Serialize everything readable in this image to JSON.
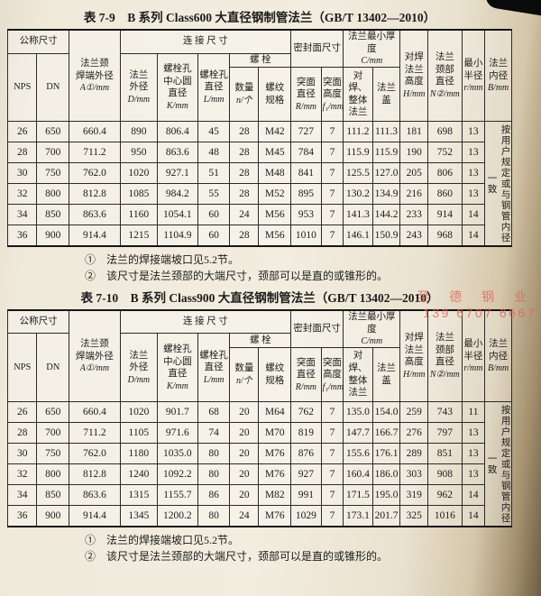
{
  "columns": {
    "nominal_size": "公称尺寸",
    "nps": "NPS",
    "dn": "DN",
    "neck_od_label": "法兰颈\n焊端外径",
    "neck_od_sym": "A①/mm",
    "connect": "连 接 尺 寸",
    "flange_od_label": "法兰\n外径",
    "flange_od_sym": "D/mm",
    "bolt_circle_label": "螺栓孔\n中心圆\n直径",
    "bolt_circle_sym": "K/mm",
    "bolt_hole_label": "螺栓孔\n直径",
    "bolt_hole_sym": "L/mm",
    "bolt": "螺        栓",
    "bolt_qty_label": "数量",
    "bolt_qty_sym": "n/个",
    "thread_label": "螺纹\n规格",
    "seal_face": "密封面尺寸",
    "raised_dia_label": "突面\n直径",
    "raised_dia_sym": "R/mm",
    "raised_h_label": "突面\n高度",
    "raised_h_sym": "f₁/mm",
    "min_thick_label": "法兰最小厚度",
    "min_thick_sym": "C/mm",
    "weld_integral": "对焊、\n整体\n法兰",
    "blind": "法兰\n盖",
    "height_label": "对焊\n法兰\n高度",
    "height_sym": "H/mm",
    "neck_dia_label": "法兰\n颈部\n直径",
    "neck_dia_sym": "N②/mm",
    "min_radius_label": "最小\n半径",
    "min_radius_sym": "r/mm",
    "bore_label": "法兰\n内径",
    "bore_sym": "B/mm"
  },
  "tables": [
    {
      "title": "表 7-9　B 系列 Class600 大直径钢制管法兰（GB/T 13402—2010）",
      "side_note": "按用户规定或与钢管内径一致",
      "rows": [
        [
          "26",
          "650",
          "660.4",
          "890",
          "806.4",
          "45",
          "28",
          "M42",
          "727",
          "7",
          "111.2",
          "111.3",
          "181",
          "698",
          "13"
        ],
        [
          "28",
          "700",
          "711.2",
          "950",
          "863.6",
          "48",
          "28",
          "M45",
          "784",
          "7",
          "115.9",
          "115.9",
          "190",
          "752",
          "13"
        ],
        [
          "30",
          "750",
          "762.0",
          "1020",
          "927.1",
          "51",
          "28",
          "M48",
          "841",
          "7",
          "125.5",
          "127.0",
          "205",
          "806",
          "13"
        ],
        [
          "32",
          "800",
          "812.8",
          "1085",
          "984.2",
          "55",
          "28",
          "M52",
          "895",
          "7",
          "130.2",
          "134.9",
          "216",
          "860",
          "13"
        ],
        [
          "34",
          "850",
          "863.6",
          "1160",
          "1054.1",
          "60",
          "24",
          "M56",
          "953",
          "7",
          "141.3",
          "144.2",
          "233",
          "914",
          "14"
        ],
        [
          "36",
          "900",
          "914.4",
          "1215",
          "1104.9",
          "60",
          "28",
          "M56",
          "1010",
          "7",
          "146.1",
          "150.9",
          "243",
          "968",
          "14"
        ]
      ]
    },
    {
      "title": "表 7-10　B 系列 Class900 大直径钢制管法兰（GB/T 13402—2010）",
      "side_note": "按用户规定或与钢管内径一致",
      "rows": [
        [
          "26",
          "650",
          "660.4",
          "1020",
          "901.7",
          "68",
          "20",
          "M64",
          "762",
          "7",
          "135.0",
          "154.0",
          "259",
          "743",
          "11"
        ],
        [
          "28",
          "700",
          "711.2",
          "1105",
          "971.6",
          "74",
          "20",
          "M70",
          "819",
          "7",
          "147.7",
          "166.7",
          "276",
          "797",
          "13"
        ],
        [
          "30",
          "750",
          "762.0",
          "1180",
          "1035.0",
          "80",
          "20",
          "M76",
          "876",
          "7",
          "155.6",
          "176.1",
          "289",
          "851",
          "13"
        ],
        [
          "32",
          "800",
          "812.8",
          "1240",
          "1092.2",
          "80",
          "20",
          "M76",
          "927",
          "7",
          "160.4",
          "186.0",
          "303",
          "908",
          "13"
        ],
        [
          "34",
          "850",
          "863.6",
          "1315",
          "1155.7",
          "86",
          "20",
          "M82",
          "991",
          "7",
          "171.5",
          "195.0",
          "319",
          "962",
          "14"
        ],
        [
          "36",
          "900",
          "914.4",
          "1345",
          "1200.2",
          "80",
          "24",
          "M76",
          "1029",
          "7",
          "173.1",
          "201.7",
          "325",
          "1016",
          "14"
        ]
      ]
    }
  ],
  "notes": [
    "①　法兰的焊接端坡口见5.2节。",
    "②　该尺寸是法兰颈部的大端尺寸，颈部可以是直的或锥形的。"
  ],
  "watermark": {
    "company": "至 德 钢 业",
    "phone": "139 6707 6667",
    "color": "#df655e"
  }
}
